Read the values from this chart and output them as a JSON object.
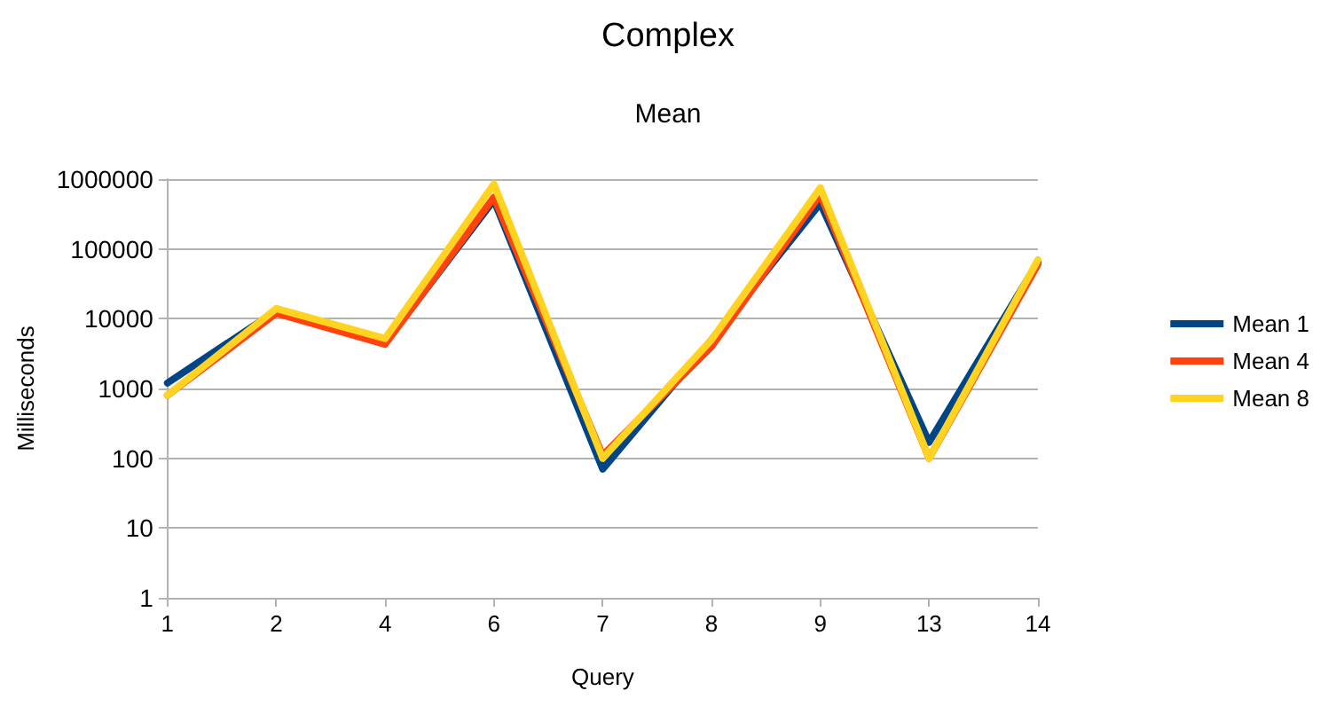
{
  "chart_data": {
    "type": "line",
    "title": "Complex",
    "subtitle": "Mean",
    "xlabel": "Query",
    "ylabel": "Milliseconds",
    "categories": [
      "1",
      "2",
      "4",
      "6",
      "7",
      "8",
      "9",
      "13",
      "14"
    ],
    "series": [
      {
        "name": "Mean 1",
        "color": "#004586",
        "values": [
          1200,
          13000,
          4500,
          500000,
          70,
          5000,
          450000,
          170,
          65000
        ]
      },
      {
        "name": "Mean 4",
        "color": "#ff420e",
        "values": [
          800,
          12000,
          4300,
          550000,
          110,
          4000,
          600000,
          100,
          60000
        ]
      },
      {
        "name": "Mean 8",
        "color": "#ffd320",
        "values": [
          800,
          14000,
          5200,
          850000,
          100,
          5000,
          750000,
          100,
          70000
        ]
      }
    ],
    "log": "y",
    "ylim": [
      1,
      1000000
    ],
    "yticks": [
      1,
      10,
      100,
      1000,
      10000,
      100000,
      1000000
    ],
    "grid": "y",
    "legend": "right",
    "marker": "none",
    "line_style": "solid"
  }
}
